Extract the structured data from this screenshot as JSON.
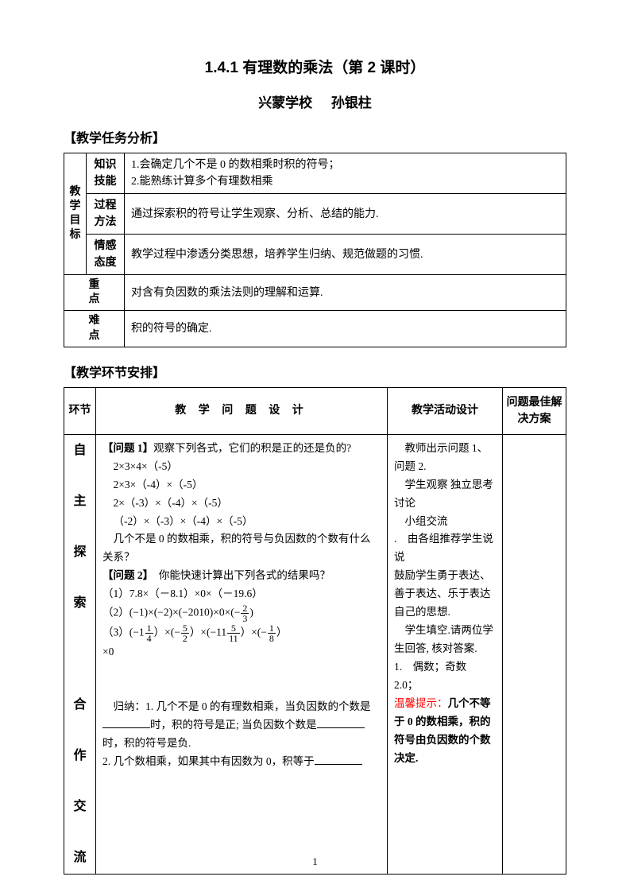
{
  "title": "1.4.1 有理数的乘法（第 2 课时）",
  "subtitle_school": "兴蒙学校",
  "subtitle_author": "孙银柱",
  "section1_header": "【教学任务分析】",
  "section2_header": "【教学环节安排】",
  "table1": {
    "goal_label": "教学目标",
    "rows": {
      "knowledge": {
        "label": "知识技能",
        "content1": "1.会确定几个不是 0 的数相乘时积的符号；",
        "content2": "2.能熟练计算多个有理数相乘"
      },
      "process": {
        "label": "过程方法",
        "content": "通过探索积的符号让学生观察、分析、总结的能力."
      },
      "emotion": {
        "label": "情感态度",
        "content": "教学过程中渗透分类思想，培养学生归纳、规范做题的习惯."
      }
    },
    "keypoint": {
      "label": "重点",
      "content": "对含有负因数的乘法法则的理解和运算."
    },
    "diffpoint": {
      "label": "难点",
      "content": "积的符号的确定."
    }
  },
  "table2": {
    "headers": {
      "env": "环节",
      "design": "教 学 问 题   设 计",
      "activity": "教学活动设计",
      "solution": "问题最佳解决方案"
    },
    "env_label": "自主探索  合作交流",
    "design": {
      "q1_title": "【问题 1】",
      "q1_text": "观察下列各式，它们的积是正的还是负的?",
      "expr1": "2×3×4×（-5）",
      "expr2": "2×3×（-4）×（-5）",
      "expr3": "2×（-3）×（-4）×（-5）",
      "expr4": "（-2）×（-3）×（-4）×（-5）",
      "q1_ask": "几个不是 0 的数相乘，积的符号与负因数的个数有什么关系？",
      "q2_title": "【问题 2】",
      "q2_text": "你能快速计算出下列各式的结果吗？",
      "q2_item1": "（1）7.8×（－8.1）×0×（－19.6）",
      "q2_item2_prefix": "（2）(−1)×(−2)×(−2010)×0×(−",
      "q2_item2_suffix": ")",
      "q2_item3_prefix": "（3）(−1",
      "q2_item3_mid1": "）×(−",
      "q2_item3_mid2": "）×(−11",
      "q2_item3_mid3": "）×(−",
      "q2_item3_suffix": "）",
      "q2_item3_tail": "×0",
      "summary_label": "归纳：",
      "summary1_a": "1. 几个不是 0 的有理数相乘，当负因数的个数是",
      "summary1_b": "时，积的符号是正; 当负因数个数是",
      "summary1_c": "时，积的符号是负.",
      "summary2_a": "2. 几个数相乘，如果其中有因数为 0，积等于",
      "fracs": {
        "f1n": "2",
        "f1d": "3",
        "f2n": "1",
        "f2d": "4",
        "f3n": "5",
        "f3d": "2",
        "f4n": "5",
        "f4d": "11",
        "f5n": "1",
        "f5d": "8"
      }
    },
    "activity": {
      "line1": "教师出示问题 1、问题 2.",
      "line2": "学生观察 独立思考 讨论",
      "line3": "小组交流",
      "line4": ".　由各组推荐学生说说",
      "line5": "鼓励学生勇于表达、善于表达、乐于表达自己的思想.",
      "line6": "学生填空.请两位学生回答, 核对答案.",
      "line7": "1.　偶数；奇数",
      "line8": "2.0；",
      "tip_label": "温馨提示：",
      "tip_text": "几个不等于 0 的数相乘，积的符号由负因数的个数决定."
    }
  },
  "page_number": "1"
}
